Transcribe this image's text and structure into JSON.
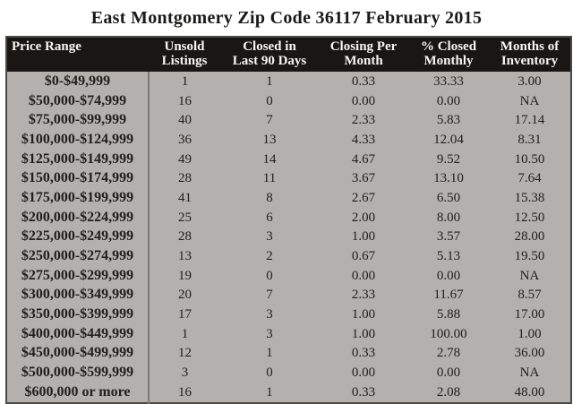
{
  "page": {
    "title": "East Montgomery Zip Code 36117 February 2015"
  },
  "colors": {
    "page_background": "#ffffff",
    "header_background": "#181716",
    "header_text": "#f7f6f3",
    "body_background": "#b3b0ad",
    "body_text": "#22201d",
    "column_divider": "#7b7875",
    "table_border": "#4c4a47"
  },
  "table": {
    "columns": [
      {
        "id": "price_range",
        "lines": [
          "Price Range"
        ],
        "align": "left"
      },
      {
        "id": "unsold_listings",
        "lines": [
          "Unsold",
          "Listings"
        ],
        "align": "center"
      },
      {
        "id": "closed_last_90_days",
        "lines": [
          "Closed in",
          "Last 90 Days"
        ],
        "align": "center"
      },
      {
        "id": "closing_per_month",
        "lines": [
          "Closing Per",
          "Month"
        ],
        "align": "center"
      },
      {
        "id": "pct_closed_monthly",
        "lines": [
          "% Closed",
          "Monthly"
        ],
        "align": "center"
      },
      {
        "id": "months_of_inventory",
        "lines": [
          "Months of",
          "Inventory"
        ],
        "align": "center"
      }
    ]
  },
  "chart_data": {
    "type": "table",
    "title": "East Montgomery Zip Code 36117 February 2015",
    "columns": [
      "Price Range",
      "Unsold Listings",
      "Closed in Last 90 Days",
      "Closing Per Month",
      "% Closed Monthly",
      "Months of Inventory"
    ],
    "rows": [
      [
        "$0-$49,999",
        "1",
        "1",
        "0.33",
        "33.33",
        "3.00"
      ],
      [
        "$50,000-$74,999",
        "16",
        "0",
        "0.00",
        "0.00",
        "NA"
      ],
      [
        "$75,000-$99,999",
        "40",
        "7",
        "2.33",
        "5.83",
        "17.14"
      ],
      [
        "$100,000-$124,999",
        "36",
        "13",
        "4.33",
        "12.04",
        "8.31"
      ],
      [
        "$125,000-$149,999",
        "49",
        "14",
        "4.67",
        "9.52",
        "10.50"
      ],
      [
        "$150,000-$174,999",
        "28",
        "11",
        "3.67",
        "13.10",
        "7.64"
      ],
      [
        "$175,000-$199,999",
        "41",
        "8",
        "2.67",
        "6.50",
        "15.38"
      ],
      [
        "$200,000-$224,999",
        "25",
        "6",
        "2.00",
        "8.00",
        "12.50"
      ],
      [
        "$225,000-$249,999",
        "28",
        "3",
        "1.00",
        "3.57",
        "28.00"
      ],
      [
        "$250,000-$274,999",
        "13",
        "2",
        "0.67",
        "5.13",
        "19.50"
      ],
      [
        "$275,000-$299,999",
        "19",
        "0",
        "0.00",
        "0.00",
        "NA"
      ],
      [
        "$300,000-$349,999",
        "20",
        "7",
        "2.33",
        "11.67",
        "8.57"
      ],
      [
        "$350,000-$399,999",
        "17",
        "3",
        "1.00",
        "5.88",
        "17.00"
      ],
      [
        "$400,000-$449,999",
        "1",
        "3",
        "1.00",
        "100.00",
        "1.00"
      ],
      [
        "$450,000-$499,999",
        "12",
        "1",
        "0.33",
        "2.78",
        "36.00"
      ],
      [
        "$500,000-$599,999",
        "3",
        "0",
        "0.00",
        "0.00",
        "NA"
      ],
      [
        "$600,000 or more",
        "16",
        "1",
        "0.33",
        "2.08",
        "48.00"
      ]
    ]
  }
}
